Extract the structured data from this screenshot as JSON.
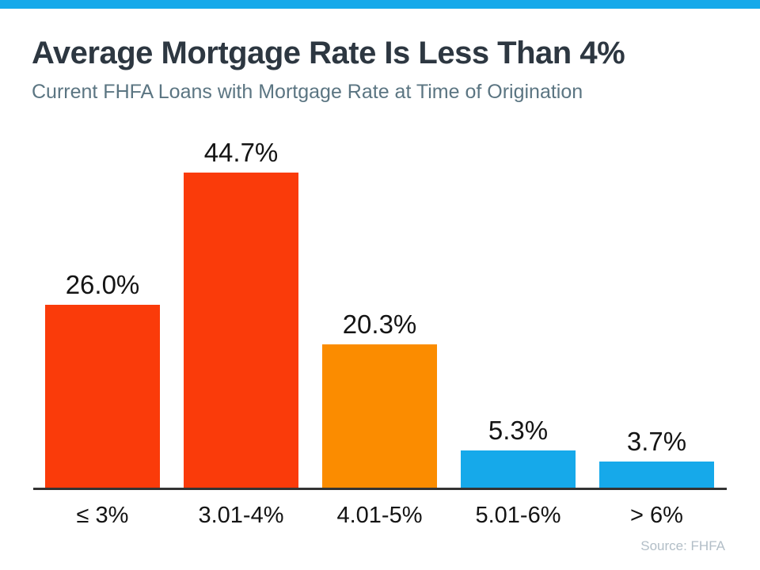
{
  "page": {
    "title": "Average Mortgage Rate Is Less Than 4%",
    "subtitle": "Current FHFA Loans with Mortgage Rate at Time of Origination",
    "source": "Source: FHFA"
  },
  "colors": {
    "top_strip": "#16a9ea",
    "title_text": "#2d3741",
    "subtitle_text": "#5b7582",
    "axis": "#333333",
    "label_text": "#141414",
    "source_text": "#b2bec7",
    "red": "#fa3b0a",
    "orange": "#fb8c00",
    "blue": "#16a9ea"
  },
  "chart_data": {
    "type": "bar",
    "title": "Average Mortgage Rate Is Less Than 4%",
    "subtitle": "Current FHFA Loans with Mortgage Rate at Time of Origination",
    "categories": [
      "≤ 3%",
      "3.01-4%",
      "4.01-5%",
      "5.01-6%",
      "> 6%"
    ],
    "values": [
      26.0,
      44.7,
      20.3,
      5.3,
      3.7
    ],
    "value_labels": [
      "26.0%",
      "44.7%",
      "20.3%",
      "5.3%",
      "3.7%"
    ],
    "bar_colors": [
      "#fa3b0a",
      "#fa3b0a",
      "#fb8c00",
      "#16a9ea",
      "#16a9ea"
    ],
    "xlabel": "",
    "ylabel": "",
    "ylim": [
      0,
      50
    ],
    "grid": false,
    "legend": false,
    "source": "Source: FHFA"
  }
}
